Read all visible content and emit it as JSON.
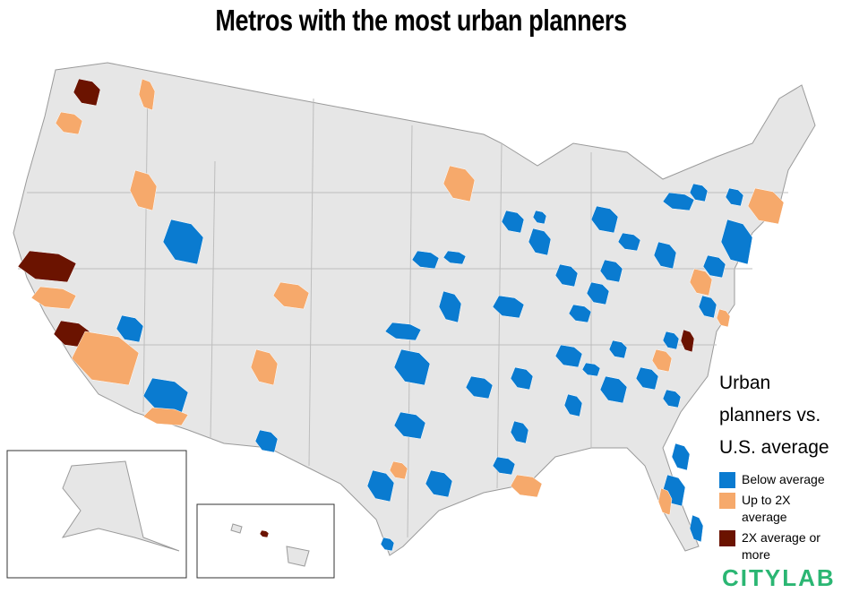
{
  "title": "Metros with the most urban planners",
  "legend": {
    "title": "Urban planners vs. U.S. average",
    "items": [
      {
        "label": "Below average",
        "color": "#0a7bd0"
      },
      {
        "label": "Up to 2X average",
        "color": "#f6a96b"
      },
      {
        "label": "2X average or more",
        "color": "#6b1300"
      }
    ]
  },
  "logo": "CITYLAB"
}
